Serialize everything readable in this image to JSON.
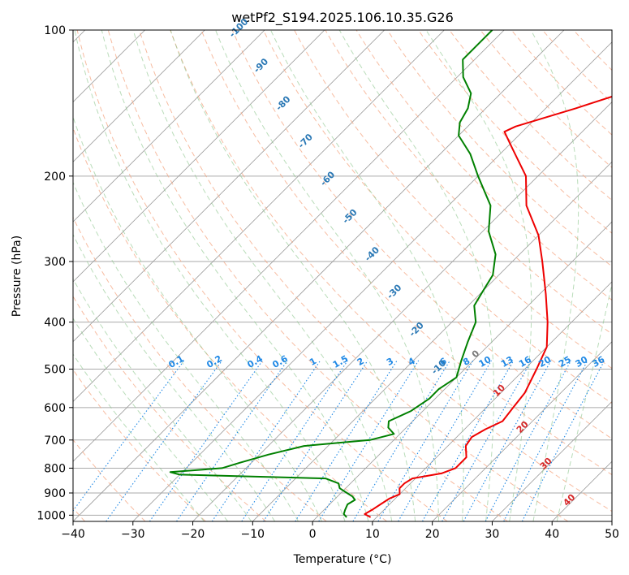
{
  "chart_data": {
    "type": "line",
    "title": "wetPf2_S194.2025.106.10.35.G26",
    "xlabel": "Temperature (°C)",
    "ylabel": "Pressure (hPa)",
    "xlim": [
      -40,
      50
    ],
    "ylim": [
      1030,
      100
    ],
    "y_scale": "log",
    "grid": true,
    "x_ticks": [
      -40,
      -30,
      -20,
      -10,
      0,
      10,
      20,
      30,
      40,
      50
    ],
    "y_ticks": [
      100,
      200,
      300,
      400,
      500,
      600,
      700,
      800,
      900,
      1000
    ],
    "skew_t": true,
    "colors": {
      "temperature": "#ee0000",
      "dewpoint": "#008000",
      "dry_adiabat": "#f4a582",
      "moist_adiabat": "#8bc48a",
      "mixing_ratio": "#1e88e5",
      "isotherm": "#999999",
      "isobar": "#aaaaaa"
    },
    "series": [
      {
        "label": "temperature",
        "points": [
          [
            1010,
            9.0
          ],
          [
            995,
            7.5
          ],
          [
            975,
            8.0
          ],
          [
            950,
            8.5
          ],
          [
            925,
            9.0
          ],
          [
            905,
            10.0
          ],
          [
            880,
            9.0
          ],
          [
            860,
            9.0
          ],
          [
            840,
            9.5
          ],
          [
            820,
            13.5
          ],
          [
            800,
            15.0
          ],
          [
            760,
            15.0
          ],
          [
            720,
            13.0
          ],
          [
            690,
            12.5
          ],
          [
            665,
            13.5
          ],
          [
            640,
            15.0
          ],
          [
            600,
            14.5
          ],
          [
            560,
            14.0
          ],
          [
            500,
            12.0
          ],
          [
            450,
            10.0
          ],
          [
            400,
            6.0
          ],
          [
            350,
            1.0
          ],
          [
            300,
            -5.0
          ],
          [
            265,
            -10.0
          ],
          [
            230,
            -17.0
          ],
          [
            200,
            -22.0
          ],
          [
            175,
            -29.0
          ],
          [
            162,
            -33.0
          ],
          [
            158,
            -32.0
          ],
          [
            145,
            -25.0
          ],
          [
            130,
            -17.0
          ],
          [
            120,
            -11.0
          ],
          [
            110,
            -6.0
          ],
          [
            100,
            -4.0
          ]
        ]
      },
      {
        "label": "dewpoint",
        "points": [
          [
            1010,
            5.0
          ],
          [
            995,
            4.0
          ],
          [
            975,
            3.5
          ],
          [
            950,
            3.0
          ],
          [
            930,
            3.5
          ],
          [
            915,
            2.5
          ],
          [
            900,
            1.0
          ],
          [
            880,
            -1.0
          ],
          [
            860,
            -2.0
          ],
          [
            840,
            -5.0
          ],
          [
            825,
            -30.0
          ],
          [
            815,
            -32.0
          ],
          [
            800,
            -24.0
          ],
          [
            780,
            -22.0
          ],
          [
            750,
            -18.5
          ],
          [
            720,
            -14.0
          ],
          [
            700,
            -4.0
          ],
          [
            680,
            -1.0
          ],
          [
            660,
            -3.0
          ],
          [
            640,
            -4.0
          ],
          [
            610,
            -2.0
          ],
          [
            575,
            -1.0
          ],
          [
            550,
            -1.0
          ],
          [
            520,
            0.0
          ],
          [
            480,
            -2.0
          ],
          [
            440,
            -4.0
          ],
          [
            400,
            -6.0
          ],
          [
            370,
            -9.0
          ],
          [
            345,
            -10.0
          ],
          [
            320,
            -11.0
          ],
          [
            290,
            -14.0
          ],
          [
            260,
            -19.0
          ],
          [
            230,
            -23.0
          ],
          [
            200,
            -30.0
          ],
          [
            180,
            -35.0
          ],
          [
            165,
            -40.0
          ],
          [
            155,
            -42.0
          ],
          [
            145,
            -43.0
          ],
          [
            135,
            -45.0
          ],
          [
            125,
            -49.0
          ],
          [
            115,
            -52.0
          ],
          [
            105,
            -52.0
          ],
          [
            100,
            -52.0
          ]
        ]
      }
    ],
    "isotherm_labels": [
      "-100",
      "-90",
      "-80",
      "-70",
      "-60",
      "-50",
      "-40",
      "-30",
      "-20",
      "-10",
      "0",
      "10",
      "20",
      "30",
      "40"
    ],
    "mixing_ratio_labels": [
      "0.1",
      "0.2",
      "0.4",
      "0.6",
      "1",
      "1.5",
      "2",
      "3",
      "4",
      "6",
      "8",
      "10",
      "13",
      "16",
      "20",
      "25",
      "30",
      "36"
    ]
  }
}
